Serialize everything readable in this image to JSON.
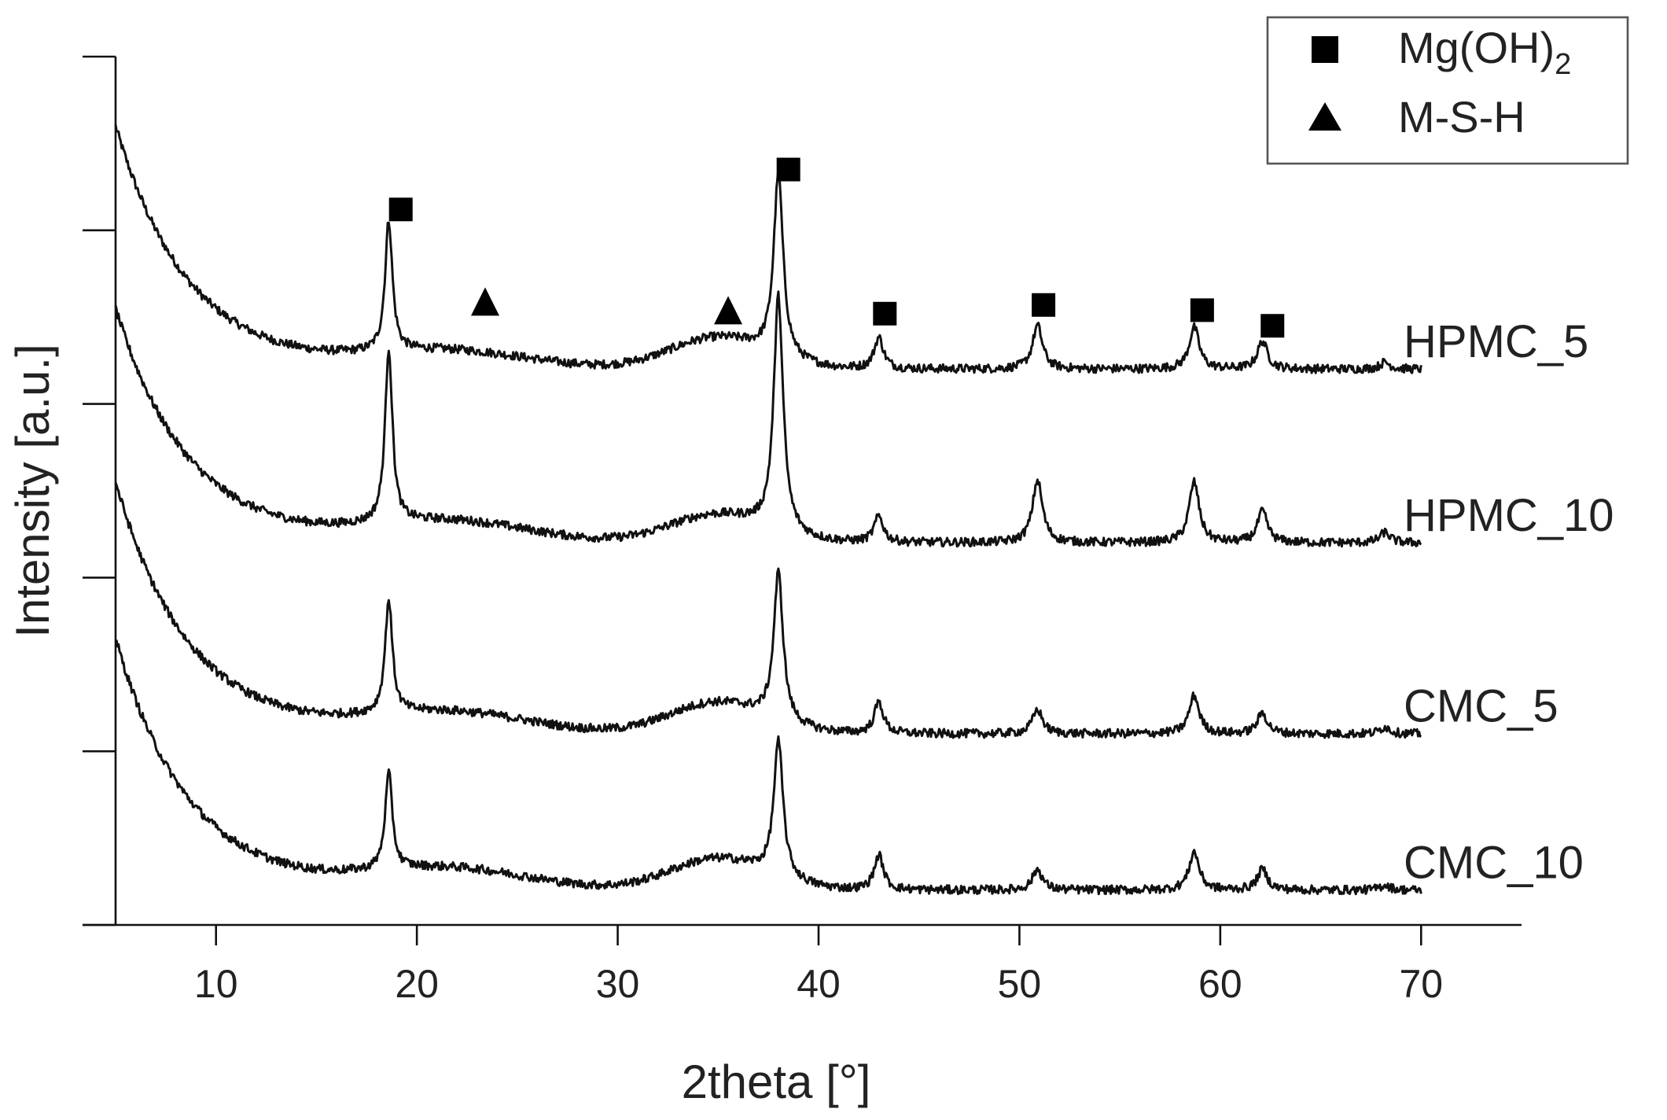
{
  "chart_data": {
    "type": "line",
    "xlabel": "2theta [°]",
    "ylabel": "Intensity [a.u.]",
    "xlim": [
      5,
      75
    ],
    "ylim": [
      0,
      5
    ],
    "x_ticks": [
      10,
      20,
      30,
      40,
      50,
      60,
      70
    ],
    "x_tick_labels": [
      "10",
      "20",
      "30",
      "40",
      "50",
      "60",
      "70"
    ],
    "y_ticks": [
      0,
      1,
      2,
      3,
      4,
      5
    ],
    "y_tick_labels": [],
    "grid": false,
    "legend_position": "top-right",
    "legend": [
      {
        "label": "Mg(OH)",
        "subscript": "2",
        "marker": "square"
      },
      {
        "label": "M-S-H",
        "marker": "triangle"
      }
    ],
    "x_range": [
      5,
      70
    ],
    "series": [
      {
        "name": "HPMC_5",
        "label": "HPMC_5",
        "baseline": 3.2,
        "start_height": 1.4,
        "decay": 3.6,
        "halo": [
          {
            "center": 21.5,
            "height": 0.1,
            "width": 4
          },
          {
            "center": 35,
            "height": 0.18,
            "width": 2.4
          }
        ],
        "peaks": [
          {
            "x": 18.6,
            "height": 0.75
          },
          {
            "x": 38.0,
            "height": 1.05
          },
          {
            "x": 43.0,
            "height": 0.18
          },
          {
            "x": 50.9,
            "height": 0.25
          },
          {
            "x": 58.7,
            "height": 0.24
          },
          {
            "x": 62.1,
            "height": 0.16
          },
          {
            "x": 68.2,
            "height": 0.04
          }
        ]
      },
      {
        "name": "HPMC_10",
        "label": "HPMC_10",
        "baseline": 2.2,
        "start_height": 1.35,
        "decay": 3.6,
        "halo": [
          {
            "center": 21.5,
            "height": 0.12,
            "width": 4
          },
          {
            "center": 35,
            "height": 0.16,
            "width": 2.4
          }
        ],
        "peaks": [
          {
            "x": 18.6,
            "height": 1.0
          },
          {
            "x": 38.0,
            "height": 1.35
          },
          {
            "x": 43.0,
            "height": 0.15
          },
          {
            "x": 50.9,
            "height": 0.36
          },
          {
            "x": 58.7,
            "height": 0.35
          },
          {
            "x": 62.1,
            "height": 0.18
          },
          {
            "x": 68.2,
            "height": 0.06
          }
        ]
      },
      {
        "name": "CMC_5",
        "label": "CMC_5",
        "baseline": 1.1,
        "start_height": 1.45,
        "decay": 3.6,
        "halo": [
          {
            "center": 21.5,
            "height": 0.12,
            "width": 4
          },
          {
            "center": 35,
            "height": 0.18,
            "width": 2.4
          }
        ],
        "peaks": [
          {
            "x": 18.6,
            "height": 0.65
          },
          {
            "x": 38.0,
            "height": 0.85
          },
          {
            "x": 43.0,
            "height": 0.18
          },
          {
            "x": 50.9,
            "height": 0.14
          },
          {
            "x": 58.7,
            "height": 0.22
          },
          {
            "x": 62.1,
            "height": 0.12
          },
          {
            "x": 68.2,
            "height": 0.04
          }
        ]
      },
      {
        "name": "CMC_10",
        "label": "CMC_10",
        "baseline": 0.2,
        "start_height": 1.45,
        "decay": 3.6,
        "halo": [
          {
            "center": 21.5,
            "height": 0.12,
            "width": 4
          },
          {
            "center": 35,
            "height": 0.18,
            "width": 2.4
          }
        ],
        "peaks": [
          {
            "x": 18.6,
            "height": 0.55
          },
          {
            "x": 38.0,
            "height": 0.78
          },
          {
            "x": 43.0,
            "height": 0.2
          },
          {
            "x": 50.9,
            "height": 0.12
          },
          {
            "x": 58.7,
            "height": 0.22
          },
          {
            "x": 62.1,
            "height": 0.12
          },
          {
            "x": 68.2,
            "height": 0.03
          }
        ]
      }
    ],
    "markers": [
      {
        "type": "square",
        "x": 19.2,
        "y": 4.12
      },
      {
        "type": "square",
        "x": 38.5,
        "y": 4.35
      },
      {
        "type": "square",
        "x": 43.3,
        "y": 3.52
      },
      {
        "type": "square",
        "x": 51.2,
        "y": 3.57
      },
      {
        "type": "square",
        "x": 59.1,
        "y": 3.54
      },
      {
        "type": "square",
        "x": 62.6,
        "y": 3.45
      },
      {
        "type": "triangle",
        "x": 23.4,
        "y": 3.59
      },
      {
        "type": "triangle",
        "x": 35.5,
        "y": 3.54
      }
    ]
  }
}
